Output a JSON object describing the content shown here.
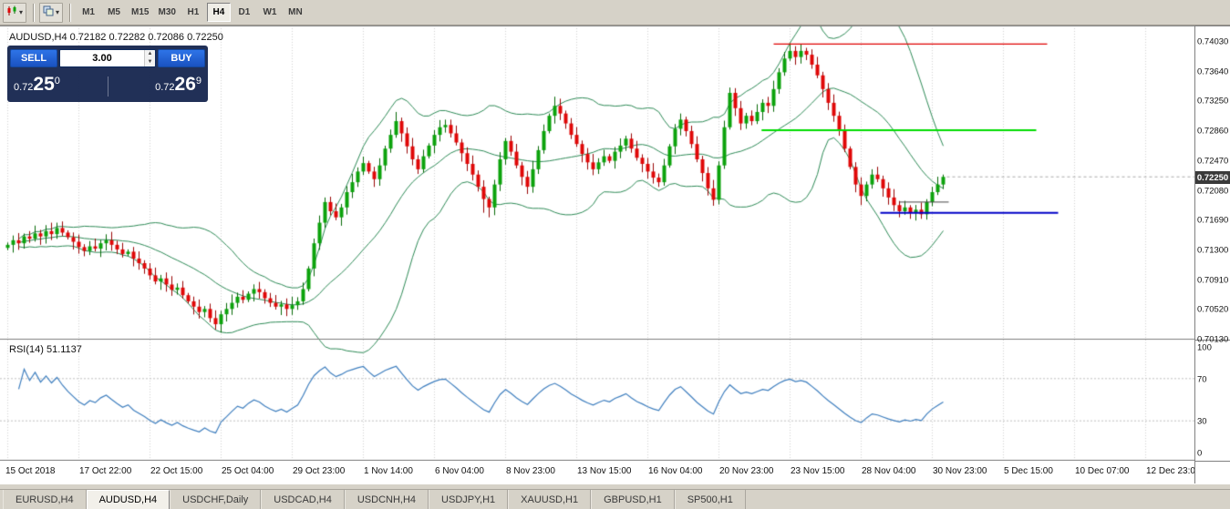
{
  "toolbar": {
    "timeframes": [
      "M1",
      "M5",
      "M15",
      "M30",
      "H1",
      "H4",
      "D1",
      "W1",
      "MN"
    ],
    "active_timeframe": "H4",
    "icons": [
      "candlestick-chart-icon",
      "window-layout-icon"
    ]
  },
  "chart": {
    "title": "AUDUSD,H4 0.72182 0.72282 0.72086 0.72250",
    "symbol_period": "AUDUSD,H4",
    "current_price": "0.72250",
    "one_click": {
      "sell_label": "SELL",
      "buy_label": "BUY",
      "volume": "3.00",
      "bid": {
        "small": "0.72",
        "big": "25",
        "sup": "0"
      },
      "ask": {
        "small": "0.72",
        "big": "26",
        "sup": "9"
      }
    }
  },
  "rsi": {
    "label": "RSI(14) 51.1137"
  },
  "tabs": {
    "items": [
      "EURUSD,H4",
      "AUDUSD,H4",
      "USDCHF,Daily",
      "USDCAD,H4",
      "USDCNH,H4",
      "USDJPY,H1",
      "XAUUSD,H1",
      "GBPUSD,H1",
      "SP500,H1"
    ],
    "active": "AUDUSD,H4"
  },
  "chart_data": {
    "type": "candlestick",
    "symbol": "AUDUSD",
    "timeframe": "H4",
    "current_bar": {
      "open": 0.72182,
      "high": 0.72282,
      "low": 0.72086,
      "close": 0.7225
    },
    "y_axis": {
      "min": 0.7013,
      "max": 0.7403,
      "tick_step": 0.0039,
      "ticks": [
        "0.74030",
        "0.73640",
        "0.73250",
        "0.72860",
        "0.72470",
        "0.72080",
        "0.71690",
        "0.71300",
        "0.70910",
        "0.70520",
        "0.70130"
      ]
    },
    "x_axis": {
      "labels": [
        "15 Oct 2018",
        "17 Oct 22:00",
        "22 Oct 15:00",
        "25 Oct 04:00",
        "29 Oct 23:00",
        "1 Nov 14:00",
        "6 Nov 04:00",
        "8 Nov 23:00",
        "13 Nov 15:00",
        "16 Nov 04:00",
        "20 Nov 23:00",
        "23 Nov 15:00",
        "28 Nov 04:00",
        "30 Nov 23:00",
        "5 Dec 15:00",
        "10 Dec 07:00",
        "12 Dec 23:00"
      ]
    },
    "first_open": 0.7132,
    "closes": [
      0.7136,
      0.7142,
      0.7138,
      0.7147,
      0.7144,
      0.7151,
      0.7147,
      0.7154,
      0.715,
      0.7158,
      0.7152,
      0.7146,
      0.714,
      0.7133,
      0.7128,
      0.7134,
      0.7131,
      0.7138,
      0.7142,
      0.7136,
      0.713,
      0.7124,
      0.7127,
      0.7118,
      0.7112,
      0.7105,
      0.7096,
      0.7088,
      0.7092,
      0.7084,
      0.7077,
      0.708,
      0.707,
      0.7062,
      0.7055,
      0.7048,
      0.7052,
      0.704,
      0.7032,
      0.7045,
      0.7052,
      0.706,
      0.7068,
      0.7064,
      0.7072,
      0.7078,
      0.7074,
      0.7066,
      0.706,
      0.7055,
      0.7058,
      0.7052,
      0.7057,
      0.7062,
      0.7078,
      0.7105,
      0.7138,
      0.7165,
      0.7192,
      0.718,
      0.7172,
      0.7185,
      0.7205,
      0.7218,
      0.7232,
      0.7243,
      0.7232,
      0.7222,
      0.724,
      0.7262,
      0.728,
      0.7298,
      0.7282,
      0.7265,
      0.7248,
      0.7235,
      0.7252,
      0.7266,
      0.728,
      0.729,
      0.7293,
      0.7282,
      0.727,
      0.7256,
      0.7242,
      0.7228,
      0.7212,
      0.7196,
      0.7185,
      0.7215,
      0.7248,
      0.7272,
      0.7258,
      0.724,
      0.7225,
      0.7212,
      0.7235,
      0.726,
      0.7285,
      0.7305,
      0.7318,
      0.7308,
      0.7295,
      0.728,
      0.7268,
      0.7255,
      0.7244,
      0.7235,
      0.7244,
      0.7252,
      0.7246,
      0.7258,
      0.7266,
      0.7275,
      0.7262,
      0.725,
      0.7242,
      0.7232,
      0.7224,
      0.7218,
      0.724,
      0.7265,
      0.7288,
      0.73,
      0.7285,
      0.7268,
      0.7248,
      0.723,
      0.721,
      0.7195,
      0.724,
      0.729,
      0.7335,
      0.7315,
      0.7295,
      0.7305,
      0.7298,
      0.731,
      0.7322,
      0.7318,
      0.734,
      0.7362,
      0.738,
      0.739,
      0.7382,
      0.739,
      0.7385,
      0.7372,
      0.7358,
      0.734,
      0.7322,
      0.7305,
      0.7285,
      0.7262,
      0.7238,
      0.7215,
      0.72,
      0.7215,
      0.7228,
      0.7222,
      0.721,
      0.7198,
      0.7188,
      0.718,
      0.7185,
      0.7178,
      0.7182,
      0.7176,
      0.7192,
      0.7205,
      0.7215,
      0.7225
    ],
    "wick_overrides": {
      "9": {
        "high": 0.7165
      },
      "38": {
        "low": 0.7025
      },
      "58": {
        "high": 0.7198
      },
      "71": {
        "high": 0.731
      },
      "80": {
        "high": 0.73
      },
      "87": {
        "low": 0.7178
      },
      "88": {
        "low": 0.7172
      },
      "100": {
        "high": 0.733
      },
      "123": {
        "high": 0.7308
      },
      "132": {
        "high": 0.7342
      },
      "143": {
        "high": 0.74
      },
      "145": {
        "high": 0.7399
      },
      "146": {
        "high": 0.7394
      },
      "156": {
        "low": 0.7188
      },
      "163": {
        "low": 0.7172
      },
      "165": {
        "low": 0.717
      },
      "167": {
        "low": 0.717
      },
      "171": {
        "high": 0.7228,
        "low": 0.7209
      }
    },
    "indicators": {
      "bollinger_bands": {
        "period": 20,
        "deviation": 2,
        "color": "#2e8b57"
      },
      "rsi": {
        "period": 14,
        "current_value": 51.1137,
        "color": "#3f7fbf",
        "levels": [
          30,
          70
        ],
        "scale_ticks": [
          "100",
          "70",
          "30",
          "0"
        ]
      }
    },
    "horizontal_lines": [
      {
        "color": "#df0000",
        "price": 0.7399,
        "from_bar": 140,
        "to_bar": 190,
        "width": 1.4
      },
      {
        "color": "#00dd00",
        "price": 0.7286,
        "from_bar": 137.8,
        "to_bar": 188,
        "width": 2
      },
      {
        "color": "#0000c8",
        "price": 0.7178,
        "from_bar": 159.5,
        "to_bar": 192,
        "width": 2
      },
      {
        "color": "#444444",
        "price": 0.7192,
        "from_bar": 163,
        "to_bar": 172,
        "width": 1
      }
    ],
    "colors": {
      "bull": "#0ca30c",
      "bull_border": "#066a06",
      "bear": "#e00808",
      "bear_border": "#9a0505",
      "grid": "#d4d4d4",
      "background": "#ffffff",
      "bid_line": "#aaaaaa"
    }
  }
}
